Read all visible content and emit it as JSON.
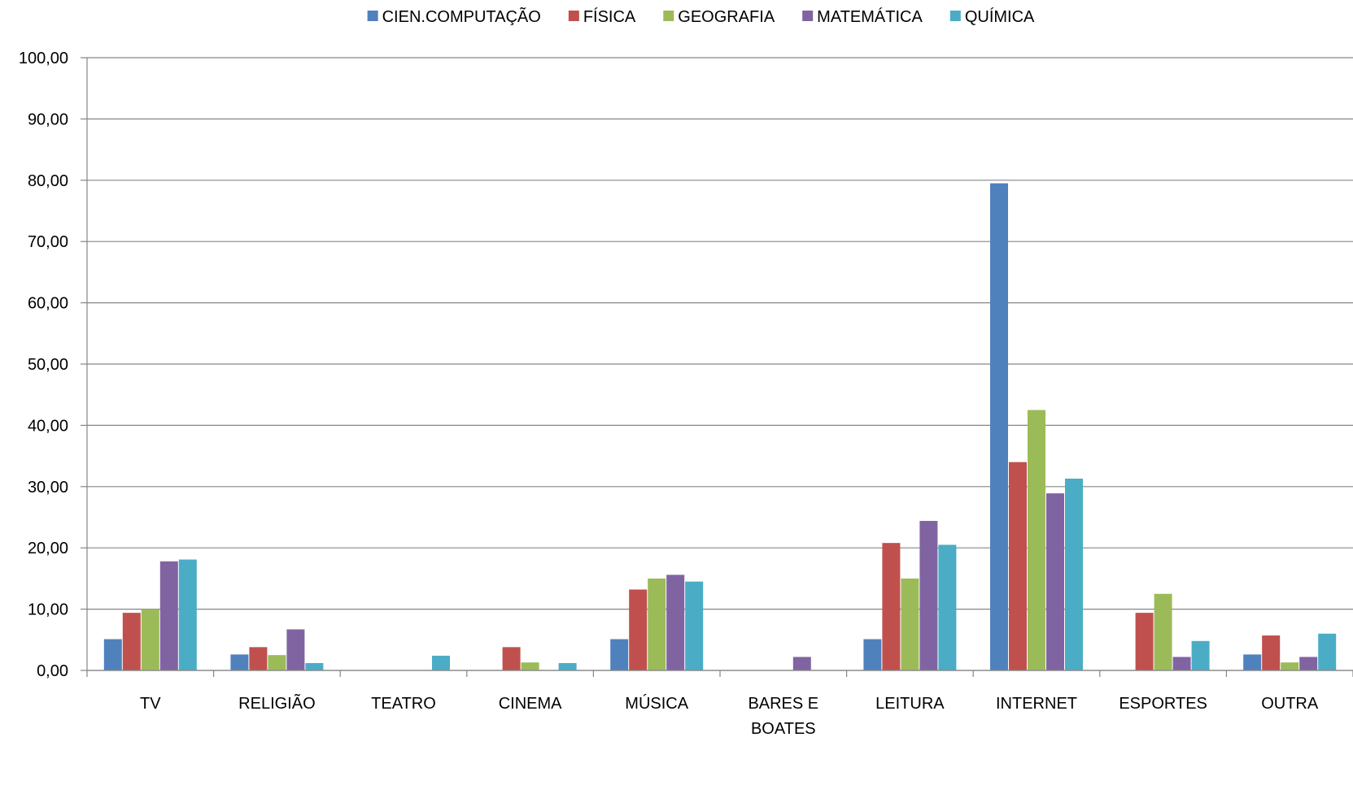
{
  "chart_data": {
    "type": "bar",
    "title": "",
    "xlabel": "",
    "ylabel": "",
    "ylim": [
      0,
      100
    ],
    "ytick_step": 10,
    "ytick_labels": [
      "0,00",
      "10,00",
      "20,00",
      "30,00",
      "40,00",
      "50,00",
      "60,00",
      "70,00",
      "80,00",
      "90,00",
      "100,00"
    ],
    "grid": true,
    "legend_position": "top",
    "categories": [
      [
        "TV"
      ],
      [
        "RELIGIÃO"
      ],
      [
        "TEATRO"
      ],
      [
        "CINEMA"
      ],
      [
        "MÚSICA"
      ],
      [
        "BARES E",
        "BOATES"
      ],
      [
        "LEITURA"
      ],
      [
        "INTERNET"
      ],
      [
        "ESPORTES"
      ],
      [
        "OUTRA"
      ]
    ],
    "series": [
      {
        "name": "CIEN.COMPUTAÇÃO",
        "color": "#4F81BD",
        "values": [
          5.1,
          2.6,
          0,
          0,
          5.1,
          0,
          5.1,
          79.5,
          0,
          2.6
        ]
      },
      {
        "name": "FÍSICA",
        "color": "#C0504D",
        "values": [
          9.4,
          3.8,
          0,
          3.8,
          13.2,
          0,
          20.8,
          34.0,
          9.4,
          5.7
        ]
      },
      {
        "name": "GEOGRAFIA",
        "color": "#9BBB59",
        "values": [
          10.0,
          2.5,
          0,
          1.3,
          15.0,
          0,
          15.0,
          42.5,
          12.5,
          1.3
        ]
      },
      {
        "name": "MATEMÁTICA",
        "color": "#8064A2",
        "values": [
          17.8,
          6.7,
          0,
          0,
          15.6,
          2.2,
          24.4,
          28.9,
          2.2,
          2.2
        ]
      },
      {
        "name": "QUÍMICA",
        "color": "#4BACC6",
        "values": [
          18.1,
          1.2,
          2.4,
          1.2,
          14.5,
          0,
          20.5,
          31.3,
          4.8,
          6.0
        ]
      }
    ]
  }
}
